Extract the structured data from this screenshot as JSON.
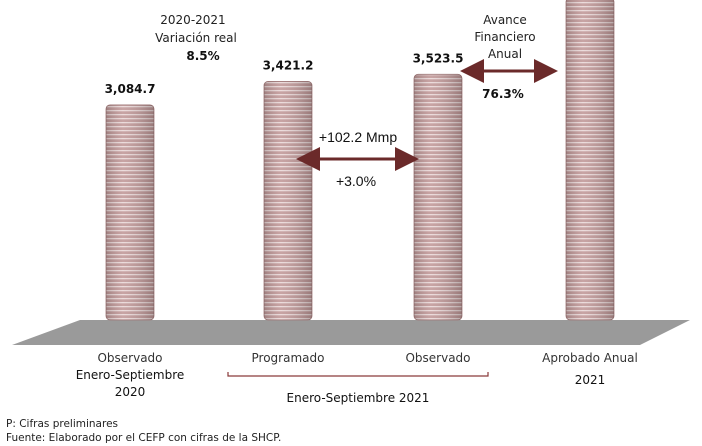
{
  "chart_data": {
    "type": "bar",
    "categories": [
      "Observado",
      "Programado",
      "Observado",
      "Aprobado Anual"
    ],
    "category_sublabels": [
      "Enero-Septiembre\n2020",
      "",
      "",
      "2021"
    ],
    "group_label": "Enero-Septiembre 2021",
    "values": [
      3084.7,
      3421.2,
      3523.5,
      4618.0
    ],
    "value_labels": [
      "3,084.7",
      "3,421.2",
      "3,523.5",
      ""
    ],
    "bar_color": "#b88d8d",
    "bar_stripe_color": "#e8d4d4",
    "floor_color": "#9a9a9a",
    "arrow_color": "#6b2a2a",
    "ylim": [
      0,
      4618
    ],
    "grid": false,
    "annotations": {
      "real_variation": {
        "label_line1": "2020-2021",
        "label_line2": "Variación real",
        "value": "8.5%"
      },
      "difference": {
        "amount": "+102.2 Mmp",
        "percent": "+3.0%"
      },
      "advance": {
        "label_line1": "Avance",
        "label_line2": "Financiero",
        "label_line3": "Anual",
        "value": "76.3%"
      }
    }
  },
  "footnotes": {
    "preliminary": "P: Cifras preliminares",
    "source": "Fuente: Elaborado por el CEFP con cifras de la SHCP."
  }
}
